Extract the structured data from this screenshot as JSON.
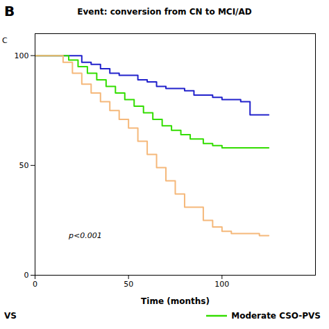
{
  "chart_data": {
    "type": "line",
    "title": "Event: conversion from CN to MCI/AD",
    "x_label": "Time (months)",
    "line_style": "step",
    "xlim": [
      0,
      150
    ],
    "ylim": [
      0,
      110
    ],
    "xticks": [
      0,
      50,
      100
    ],
    "yticks": [
      0,
      50,
      100
    ],
    "grid": false,
    "legend": "bottom",
    "annotations": [
      {
        "text": "p<0.001",
        "x": 18,
        "y": 18
      },
      {
        "text": "B"
      },
      {
        "text": "C"
      },
      {
        "text": "VS"
      }
    ],
    "series": [
      {
        "color": "#2222cc",
        "x": [
          0,
          20,
          25,
          30,
          35,
          40,
          45,
          55,
          60,
          65,
          70,
          80,
          85,
          95,
          100,
          110,
          115,
          125
        ],
        "values": [
          100,
          100,
          97,
          96,
          94,
          92,
          91,
          89,
          88,
          86,
          85,
          84,
          82,
          81,
          80,
          79,
          73,
          73
        ]
      },
      {
        "name": "Moderate CSO-PVS",
        "color": "#33dd00",
        "x": [
          0,
          18,
          23,
          28,
          33,
          38,
          43,
          48,
          53,
          58,
          63,
          68,
          73,
          78,
          83,
          90,
          95,
          100,
          110,
          120,
          125
        ],
        "values": [
          100,
          98,
          95,
          92,
          89,
          86,
          83,
          80,
          77,
          74,
          71,
          68,
          66,
          64,
          62,
          60,
          59,
          58,
          58,
          58,
          58
        ]
      },
      {
        "color": "#f5b87a",
        "x": [
          0,
          15,
          20,
          25,
          30,
          35,
          40,
          45,
          50,
          55,
          60,
          65,
          70,
          75,
          80,
          90,
          95,
          100,
          105,
          110,
          120,
          125
        ],
        "values": [
          100,
          97,
          92,
          87,
          83,
          79,
          75,
          71,
          67,
          61,
          55,
          49,
          43,
          37,
          31,
          25,
          22,
          20,
          19,
          19,
          18,
          18
        ]
      }
    ]
  }
}
